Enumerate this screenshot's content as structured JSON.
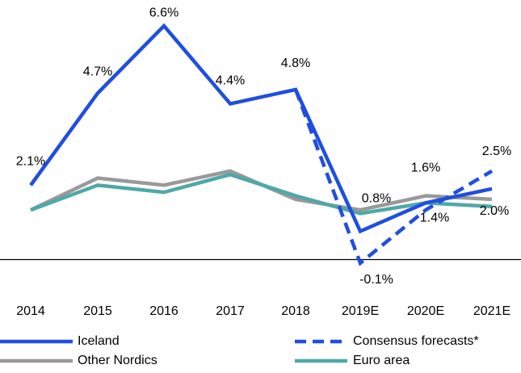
{
  "chart_data": {
    "type": "line",
    "categories": [
      "2014",
      "2015",
      "2016",
      "2017",
      "2018",
      "2019E",
      "2020E",
      "2021E"
    ],
    "ylim": [
      -0.5,
      7
    ],
    "series": [
      {
        "name": "Iceland",
        "color": "#1f4fe0",
        "dash": false,
        "values": [
          2.1,
          4.7,
          6.6,
          4.4,
          4.8,
          0.8,
          1.6,
          2.0
        ],
        "value_labels": [
          "2.1%",
          "4.7%",
          "6.6%",
          "4.4%",
          "4.8%",
          "0.8%",
          "1.6%",
          "2.0%"
        ]
      },
      {
        "name": "Consensus forecasts*",
        "color": "#1f4fe0",
        "dash": true,
        "values": [
          null,
          null,
          null,
          null,
          4.8,
          -0.1,
          1.4,
          2.5
        ],
        "value_labels": [
          null,
          null,
          null,
          null,
          null,
          "-0.1%",
          "1.4%",
          "2.5%"
        ]
      },
      {
        "name": "Other Nordics",
        "color": "#999999",
        "dash": false,
        "values": [
          1.4,
          2.3,
          2.1,
          2.5,
          1.7,
          1.4,
          1.8,
          1.7
        ]
      },
      {
        "name": "Euro area",
        "color": "#4fa8a8",
        "dash": false,
        "values": [
          1.4,
          2.1,
          1.9,
          2.4,
          1.8,
          1.3,
          1.6,
          1.5
        ]
      }
    ]
  }
}
